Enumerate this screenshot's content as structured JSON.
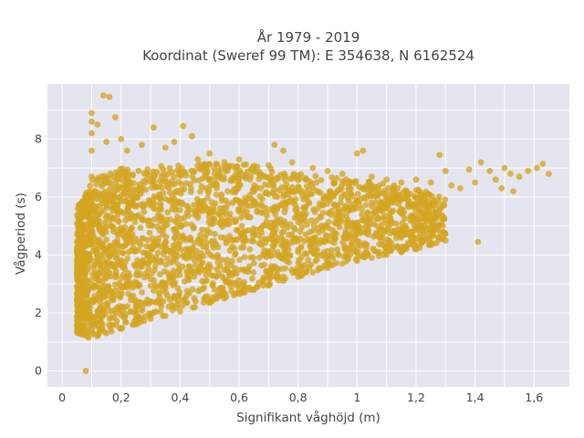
{
  "chart_data": {
    "type": "scatter",
    "title": "År 1979 - 2019",
    "subtitle": "Koordinat (Sweref 99 TM): E 354638, N 6162524",
    "xlabel": "Signifikant våghöjd (m)",
    "ylabel": "Vågperiod (s)",
    "xlim": [
      -0.05,
      1.72
    ],
    "ylim": [
      -0.55,
      9.9
    ],
    "x_ticks": [
      0,
      0.2,
      0.4,
      0.6,
      0.8,
      1,
      1.2,
      1.4,
      1.6
    ],
    "x_tick_labels": [
      "0",
      "0,2",
      "0,4",
      "0,6",
      "0,8",
      "1",
      "1,2",
      "1,4",
      "1,6"
    ],
    "y_ticks": [
      0,
      2,
      4,
      6,
      8
    ],
    "y_tick_labels": [
      "0",
      "2",
      "4",
      "6",
      "8"
    ],
    "grid": true,
    "legend": false,
    "marker_color": "#D4A520",
    "background": "#E5E5F0",
    "series": [
      {
        "values": [
          {
            "x": 0.08,
            "y": 0.0
          },
          {
            "x": 0.05,
            "y": 1.35
          },
          {
            "x": 0.06,
            "y": 1.5
          },
          {
            "x": 0.07,
            "y": 1.25
          },
          {
            "x": 0.09,
            "y": 1.15
          },
          {
            "x": 0.12,
            "y": 1.2
          },
          {
            "x": 0.15,
            "y": 1.3
          },
          {
            "x": 0.2,
            "y": 1.45
          },
          {
            "x": 0.25,
            "y": 1.6
          },
          {
            "x": 0.3,
            "y": 1.8
          },
          {
            "x": 0.35,
            "y": 1.9
          },
          {
            "x": 0.4,
            "y": 2.05
          },
          {
            "x": 0.45,
            "y": 2.2
          },
          {
            "x": 0.5,
            "y": 2.35
          },
          {
            "x": 0.55,
            "y": 2.5
          },
          {
            "x": 0.6,
            "y": 2.65
          },
          {
            "x": 0.65,
            "y": 2.8
          },
          {
            "x": 0.7,
            "y": 2.95
          },
          {
            "x": 0.75,
            "y": 3.1
          },
          {
            "x": 0.8,
            "y": 3.25
          },
          {
            "x": 0.85,
            "y": 3.4
          },
          {
            "x": 0.9,
            "y": 3.55
          },
          {
            "x": 0.95,
            "y": 3.7
          },
          {
            "x": 1.0,
            "y": 3.8
          },
          {
            "x": 1.05,
            "y": 3.9
          },
          {
            "x": 1.1,
            "y": 4.0
          },
          {
            "x": 1.15,
            "y": 4.1
          },
          {
            "x": 1.2,
            "y": 4.2
          },
          {
            "x": 1.25,
            "y": 4.35
          },
          {
            "x": 1.3,
            "y": 4.5
          },
          {
            "x": 1.41,
            "y": 4.45
          },
          {
            "x": 0.06,
            "y": 2.6
          },
          {
            "x": 0.07,
            "y": 3.0
          },
          {
            "x": 0.08,
            "y": 3.4
          },
          {
            "x": 0.09,
            "y": 3.8
          },
          {
            "x": 0.1,
            "y": 4.4
          },
          {
            "x": 0.1,
            "y": 5.0
          },
          {
            "x": 0.11,
            "y": 5.6
          },
          {
            "x": 0.11,
            "y": 6.2
          },
          {
            "x": 0.1,
            "y": 6.7
          },
          {
            "x": 0.1,
            "y": 7.6
          },
          {
            "x": 0.1,
            "y": 8.2
          },
          {
            "x": 0.1,
            "y": 8.6
          },
          {
            "x": 0.1,
            "y": 8.9
          },
          {
            "x": 0.12,
            "y": 8.5
          },
          {
            "x": 0.14,
            "y": 9.5
          },
          {
            "x": 0.16,
            "y": 9.45
          },
          {
            "x": 0.18,
            "y": 8.75
          },
          {
            "x": 0.15,
            "y": 7.9
          },
          {
            "x": 0.2,
            "y": 8.0
          },
          {
            "x": 0.22,
            "y": 7.6
          },
          {
            "x": 0.27,
            "y": 7.8
          },
          {
            "x": 0.31,
            "y": 8.4
          },
          {
            "x": 0.35,
            "y": 7.7
          },
          {
            "x": 0.38,
            "y": 7.9
          },
          {
            "x": 0.41,
            "y": 8.45
          },
          {
            "x": 0.44,
            "y": 8.1
          },
          {
            "x": 0.46,
            "y": 7.3
          },
          {
            "x": 0.5,
            "y": 7.5
          },
          {
            "x": 0.55,
            "y": 7.2
          },
          {
            "x": 0.6,
            "y": 7.3
          },
          {
            "x": 0.65,
            "y": 7.0
          },
          {
            "x": 0.7,
            "y": 7.1
          },
          {
            "x": 0.72,
            "y": 7.8
          },
          {
            "x": 0.75,
            "y": 7.6
          },
          {
            "x": 0.78,
            "y": 7.2
          },
          {
            "x": 0.85,
            "y": 7.0
          },
          {
            "x": 0.9,
            "y": 6.9
          },
          {
            "x": 0.95,
            "y": 6.8
          },
          {
            "x": 1.0,
            "y": 7.5
          },
          {
            "x": 1.02,
            "y": 7.6
          },
          {
            "x": 1.05,
            "y": 6.7
          },
          {
            "x": 1.1,
            "y": 6.6
          },
          {
            "x": 1.15,
            "y": 6.5
          },
          {
            "x": 1.2,
            "y": 6.6
          },
          {
            "x": 1.25,
            "y": 6.5
          },
          {
            "x": 1.28,
            "y": 7.45
          },
          {
            "x": 1.3,
            "y": 6.9
          },
          {
            "x": 1.32,
            "y": 6.4
          },
          {
            "x": 1.35,
            "y": 6.3
          },
          {
            "x": 1.38,
            "y": 6.95
          },
          {
            "x": 1.4,
            "y": 6.5
          },
          {
            "x": 1.42,
            "y": 7.2
          },
          {
            "x": 1.45,
            "y": 6.9
          },
          {
            "x": 1.47,
            "y": 6.6
          },
          {
            "x": 1.49,
            "y": 6.3
          },
          {
            "x": 1.5,
            "y": 7.0
          },
          {
            "x": 1.52,
            "y": 6.8
          },
          {
            "x": 1.53,
            "y": 6.2
          },
          {
            "x": 1.55,
            "y": 6.7
          },
          {
            "x": 1.58,
            "y": 6.9
          },
          {
            "x": 1.61,
            "y": 7.0
          },
          {
            "x": 1.63,
            "y": 7.15
          },
          {
            "x": 1.65,
            "y": 6.8
          }
        ]
      }
    ],
    "dense_cloud": {
      "description_free_note": "",
      "core_x_range": [
        0.05,
        1.3
      ],
      "core_y_upper_at_x": [
        [
          0.05,
          5.6
        ],
        [
          0.1,
          6.6
        ],
        [
          0.2,
          7.0
        ],
        [
          0.4,
          7.1
        ],
        [
          0.6,
          7.2
        ],
        [
          0.8,
          6.8
        ],
        [
          1.0,
          6.6
        ],
        [
          1.2,
          6.3
        ],
        [
          1.3,
          6.0
        ]
      ],
      "core_y_lower_at_x": [
        [
          0.05,
          1.3
        ],
        [
          0.1,
          1.15
        ],
        [
          0.2,
          1.45
        ],
        [
          0.4,
          2.05
        ],
        [
          0.6,
          2.65
        ],
        [
          0.8,
          3.25
        ],
        [
          1.0,
          3.8
        ],
        [
          1.2,
          4.2
        ],
        [
          1.3,
          4.5
        ]
      ]
    }
  }
}
